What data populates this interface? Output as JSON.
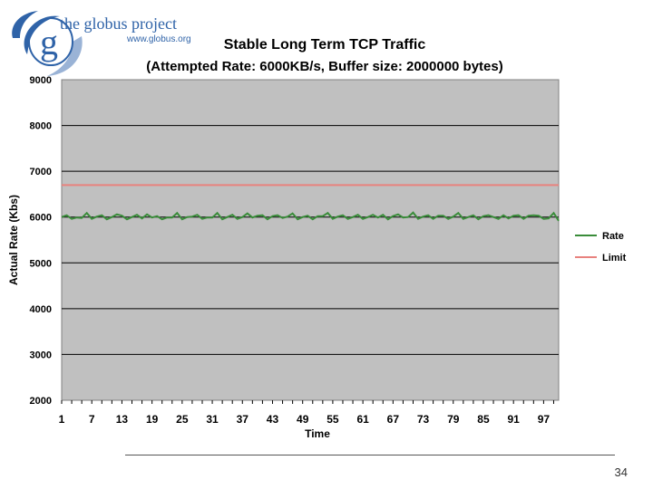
{
  "logo": {
    "letter": "g",
    "title": "the globus project",
    "url": "www.globus.org"
  },
  "page_number": "34",
  "colors": {
    "plot_background": "#c0c0c0",
    "rate": "#3a8c3a",
    "limit": "#e8827e",
    "logo_blue": "#2f63a8"
  },
  "chart_data": {
    "type": "line",
    "title": "Stable Long Term TCP Traffic",
    "subtitle": "(Attempted Rate: 6000KB/s, Buffer size: 2000000 bytes)",
    "xlabel": "Time",
    "ylabel": "Actual Rate (Kbs)",
    "xlim": [
      1,
      100
    ],
    "ylim": [
      2000,
      9000
    ],
    "y_ticks": [
      "2000",
      "3000",
      "4000",
      "5000",
      "6000",
      "7000",
      "8000",
      "9000"
    ],
    "x_ticks": [
      "1",
      "7",
      "13",
      "19",
      "25",
      "31",
      "37",
      "43",
      "49",
      "55",
      "61",
      "67",
      "73",
      "79",
      "85",
      "91",
      "97"
    ],
    "grid": "horizontal",
    "legend_position": "right",
    "series": [
      {
        "name": "Rate",
        "color": "#3a8c3a",
        "values": [
          6000,
          6040,
          5960,
          5990,
          5980,
          6090,
          5960,
          6010,
          6040,
          5950,
          6000,
          6060,
          6030,
          5950,
          6000,
          6050,
          5970,
          6060,
          5990,
          6020,
          5950,
          5990,
          5990,
          6090,
          5950,
          6000,
          6010,
          6050,
          5960,
          5990,
          5990,
          6090,
          5950,
          6000,
          6050,
          5960,
          6000,
          6080,
          5990,
          6030,
          6040,
          5950,
          6020,
          6040,
          5980,
          6010,
          6080,
          5950,
          6000,
          6030,
          5950,
          6020,
          6020,
          6090,
          5960,
          6010,
          6040,
          5960,
          6000,
          6050,
          5960,
          6000,
          6050,
          5990,
          6050,
          5950,
          6020,
          6060,
          5990,
          6000,
          6100,
          5960,
          6010,
          6040,
          5960,
          6030,
          6030,
          5960,
          6010,
          6090,
          5960,
          6000,
          6040,
          5950,
          6020,
          6040,
          6000,
          5960,
          6040,
          5970,
          6030,
          6040,
          5960,
          6030,
          6040,
          6030,
          5960,
          5970,
          6090,
          5920
        ]
      },
      {
        "name": "Limit",
        "color": "#e8827e",
        "values": [
          6700,
          6700
        ]
      }
    ]
  }
}
